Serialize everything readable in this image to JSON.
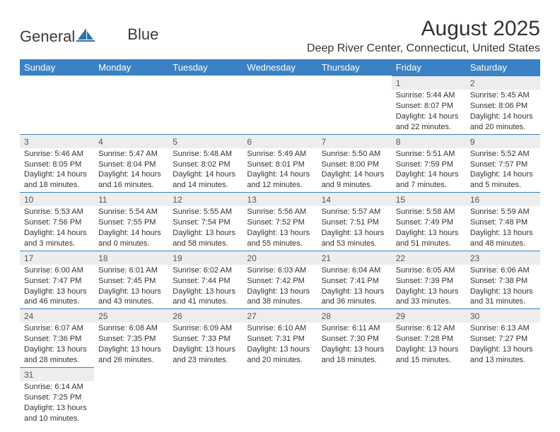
{
  "logo": {
    "textA": "General",
    "textB": "Blue"
  },
  "title": "August 2025",
  "location": "Deep River Center, Connecticut, United States",
  "colors": {
    "header_bg": "#3b82c4",
    "header_text": "#ffffff",
    "day_header_bg": "#ededed",
    "rule": "#3b82c4",
    "text": "#333333"
  },
  "weekdays": [
    "Sunday",
    "Monday",
    "Tuesday",
    "Wednesday",
    "Thursday",
    "Friday",
    "Saturday"
  ],
  "weeks": [
    [
      null,
      null,
      null,
      null,
      null,
      {
        "n": "1",
        "sr": "Sunrise: 5:44 AM",
        "ss": "Sunset: 8:07 PM",
        "dl": "Daylight: 14 hours and 22 minutes."
      },
      {
        "n": "2",
        "sr": "Sunrise: 5:45 AM",
        "ss": "Sunset: 8:06 PM",
        "dl": "Daylight: 14 hours and 20 minutes."
      }
    ],
    [
      {
        "n": "3",
        "sr": "Sunrise: 5:46 AM",
        "ss": "Sunset: 8:05 PM",
        "dl": "Daylight: 14 hours and 18 minutes."
      },
      {
        "n": "4",
        "sr": "Sunrise: 5:47 AM",
        "ss": "Sunset: 8:04 PM",
        "dl": "Daylight: 14 hours and 16 minutes."
      },
      {
        "n": "5",
        "sr": "Sunrise: 5:48 AM",
        "ss": "Sunset: 8:02 PM",
        "dl": "Daylight: 14 hours and 14 minutes."
      },
      {
        "n": "6",
        "sr": "Sunrise: 5:49 AM",
        "ss": "Sunset: 8:01 PM",
        "dl": "Daylight: 14 hours and 12 minutes."
      },
      {
        "n": "7",
        "sr": "Sunrise: 5:50 AM",
        "ss": "Sunset: 8:00 PM",
        "dl": "Daylight: 14 hours and 9 minutes."
      },
      {
        "n": "8",
        "sr": "Sunrise: 5:51 AM",
        "ss": "Sunset: 7:59 PM",
        "dl": "Daylight: 14 hours and 7 minutes."
      },
      {
        "n": "9",
        "sr": "Sunrise: 5:52 AM",
        "ss": "Sunset: 7:57 PM",
        "dl": "Daylight: 14 hours and 5 minutes."
      }
    ],
    [
      {
        "n": "10",
        "sr": "Sunrise: 5:53 AM",
        "ss": "Sunset: 7:56 PM",
        "dl": "Daylight: 14 hours and 3 minutes."
      },
      {
        "n": "11",
        "sr": "Sunrise: 5:54 AM",
        "ss": "Sunset: 7:55 PM",
        "dl": "Daylight: 14 hours and 0 minutes."
      },
      {
        "n": "12",
        "sr": "Sunrise: 5:55 AM",
        "ss": "Sunset: 7:54 PM",
        "dl": "Daylight: 13 hours and 58 minutes."
      },
      {
        "n": "13",
        "sr": "Sunrise: 5:56 AM",
        "ss": "Sunset: 7:52 PM",
        "dl": "Daylight: 13 hours and 55 minutes."
      },
      {
        "n": "14",
        "sr": "Sunrise: 5:57 AM",
        "ss": "Sunset: 7:51 PM",
        "dl": "Daylight: 13 hours and 53 minutes."
      },
      {
        "n": "15",
        "sr": "Sunrise: 5:58 AM",
        "ss": "Sunset: 7:49 PM",
        "dl": "Daylight: 13 hours and 51 minutes."
      },
      {
        "n": "16",
        "sr": "Sunrise: 5:59 AM",
        "ss": "Sunset: 7:48 PM",
        "dl": "Daylight: 13 hours and 48 minutes."
      }
    ],
    [
      {
        "n": "17",
        "sr": "Sunrise: 6:00 AM",
        "ss": "Sunset: 7:47 PM",
        "dl": "Daylight: 13 hours and 46 minutes."
      },
      {
        "n": "18",
        "sr": "Sunrise: 6:01 AM",
        "ss": "Sunset: 7:45 PM",
        "dl": "Daylight: 13 hours and 43 minutes."
      },
      {
        "n": "19",
        "sr": "Sunrise: 6:02 AM",
        "ss": "Sunset: 7:44 PM",
        "dl": "Daylight: 13 hours and 41 minutes."
      },
      {
        "n": "20",
        "sr": "Sunrise: 6:03 AM",
        "ss": "Sunset: 7:42 PM",
        "dl": "Daylight: 13 hours and 38 minutes."
      },
      {
        "n": "21",
        "sr": "Sunrise: 6:04 AM",
        "ss": "Sunset: 7:41 PM",
        "dl": "Daylight: 13 hours and 36 minutes."
      },
      {
        "n": "22",
        "sr": "Sunrise: 6:05 AM",
        "ss": "Sunset: 7:39 PM",
        "dl": "Daylight: 13 hours and 33 minutes."
      },
      {
        "n": "23",
        "sr": "Sunrise: 6:06 AM",
        "ss": "Sunset: 7:38 PM",
        "dl": "Daylight: 13 hours and 31 minutes."
      }
    ],
    [
      {
        "n": "24",
        "sr": "Sunrise: 6:07 AM",
        "ss": "Sunset: 7:36 PM",
        "dl": "Daylight: 13 hours and 28 minutes."
      },
      {
        "n": "25",
        "sr": "Sunrise: 6:08 AM",
        "ss": "Sunset: 7:35 PM",
        "dl": "Daylight: 13 hours and 26 minutes."
      },
      {
        "n": "26",
        "sr": "Sunrise: 6:09 AM",
        "ss": "Sunset: 7:33 PM",
        "dl": "Daylight: 13 hours and 23 minutes."
      },
      {
        "n": "27",
        "sr": "Sunrise: 6:10 AM",
        "ss": "Sunset: 7:31 PM",
        "dl": "Daylight: 13 hours and 20 minutes."
      },
      {
        "n": "28",
        "sr": "Sunrise: 6:11 AM",
        "ss": "Sunset: 7:30 PM",
        "dl": "Daylight: 13 hours and 18 minutes."
      },
      {
        "n": "29",
        "sr": "Sunrise: 6:12 AM",
        "ss": "Sunset: 7:28 PM",
        "dl": "Daylight: 13 hours and 15 minutes."
      },
      {
        "n": "30",
        "sr": "Sunrise: 6:13 AM",
        "ss": "Sunset: 7:27 PM",
        "dl": "Daylight: 13 hours and 13 minutes."
      }
    ],
    [
      {
        "n": "31",
        "sr": "Sunrise: 6:14 AM",
        "ss": "Sunset: 7:25 PM",
        "dl": "Daylight: 13 hours and 10 minutes."
      },
      null,
      null,
      null,
      null,
      null,
      null
    ]
  ]
}
